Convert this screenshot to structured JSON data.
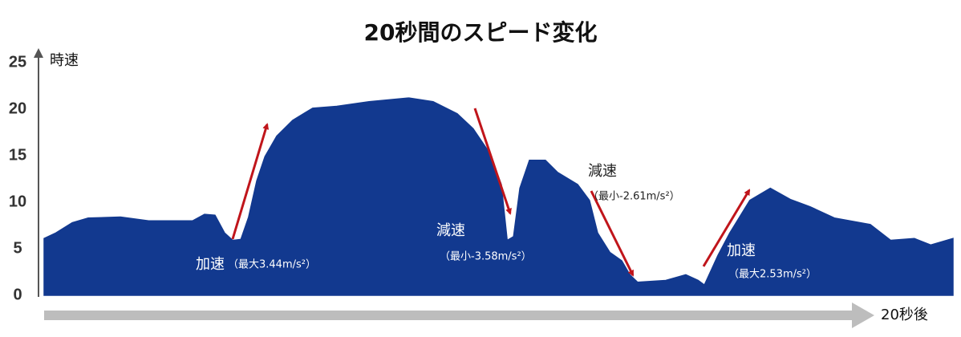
{
  "chart_data": {
    "type": "area",
    "title": "20秒間のスピード変化",
    "y_label": "時速",
    "x_label": "20秒後",
    "color": "#12398f",
    "xlim": [
      0,
      20
    ],
    "ylim": [
      0,
      25
    ],
    "yticks": [
      0,
      5,
      10,
      15,
      20,
      25
    ],
    "x": [
      0,
      0.26,
      0.62,
      0.97,
      1.68,
      2.3,
      3.27,
      3.53,
      3.76,
      3.97,
      4.15,
      4.33,
      4.5,
      4.68,
      4.86,
      5.12,
      5.47,
      5.91,
      6.44,
      7.15,
      8.03,
      8.56,
      9.09,
      9.44,
      9.8,
      10.06,
      10.19,
      10.33,
      10.47,
      10.68,
      11.03,
      11.3,
      11.74,
      12.0,
      12.18,
      12.45,
      12.71,
      12.89,
      13.06,
      13.68,
      14.12,
      14.39,
      14.53,
      14.83,
      15.09,
      15.53,
      15.98,
      16.42,
      16.86,
      17.39,
      18.18,
      18.63,
      19.15,
      19.51,
      20.0
    ],
    "values": [
      6.1,
      6.7,
      7.8,
      8.3,
      8.4,
      8.0,
      8.0,
      8.7,
      8.6,
      6.7,
      5.9,
      6.0,
      8.4,
      12.3,
      14.9,
      17.1,
      18.8,
      20.1,
      20.3,
      20.8,
      21.2,
      20.8,
      19.5,
      17.9,
      15.3,
      11.9,
      5.9,
      6.3,
      11.5,
      14.5,
      14.5,
      13.2,
      11.9,
      10.2,
      6.7,
      4.6,
      3.7,
      2.2,
      1.4,
      1.6,
      2.2,
      1.6,
      1.1,
      4.3,
      6.7,
      10.2,
      11.5,
      10.3,
      9.5,
      8.3,
      7.6,
      5.9,
      6.1,
      5.4,
      6.1
    ],
    "annotations": [
      {
        "label": "加速",
        "detail": "（最大3.44m/s²）"
      },
      {
        "label": "減速",
        "detail": "（最小-3.58m/s²）"
      },
      {
        "label": "減速",
        "detail": "（最小-2.61m/s²）"
      },
      {
        "label": "加速",
        "detail": "（最大2.53m/s²）"
      }
    ]
  }
}
